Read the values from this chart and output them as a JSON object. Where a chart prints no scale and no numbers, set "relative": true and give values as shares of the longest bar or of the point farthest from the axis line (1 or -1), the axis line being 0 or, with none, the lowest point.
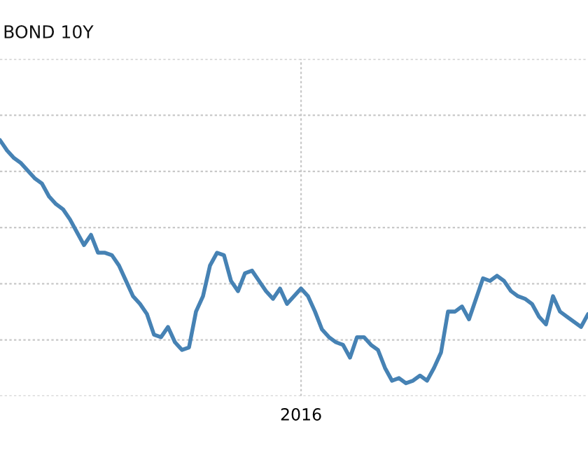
{
  "chart_data": {
    "type": "line",
    "title": "BOND 10Y",
    "relative": true,
    "grid": true,
    "legend": false,
    "categories": [
      null,
      null,
      null,
      null,
      null,
      null,
      null,
      null,
      null,
      null,
      null,
      null,
      null,
      null,
      null,
      null,
      null,
      null,
      null,
      null,
      null,
      null,
      null,
      null,
      null,
      null,
      null,
      null,
      null,
      null,
      null,
      null,
      null,
      null,
      null,
      null,
      null,
      null,
      null,
      null,
      null,
      null,
      null,
      null,
      null,
      null,
      null,
      null,
      null,
      null,
      null,
      null,
      null,
      null,
      null,
      null,
      null,
      null,
      null,
      null,
      null,
      null,
      null,
      null,
      null,
      null,
      null,
      null,
      null,
      null,
      null,
      null,
      null,
      null,
      null,
      null,
      null,
      null,
      null,
      null,
      null,
      null,
      null,
      null,
      null
    ],
    "annotations": [
      "2016"
    ],
    "series": [
      {
        "color": "#4682b4",
        "values": [
          1.0,
          0.96,
          0.93,
          0.91,
          0.88,
          0.85,
          0.83,
          0.78,
          0.75,
          0.73,
          0.69,
          0.64,
          0.59,
          0.63,
          0.56,
          0.56,
          0.55,
          0.51,
          0.45,
          0.39,
          0.36,
          0.32,
          0.24,
          0.23,
          0.27,
          0.21,
          0.18,
          0.19,
          0.33,
          0.39,
          0.51,
          0.56,
          0.55,
          0.45,
          0.41,
          0.48,
          0.49,
          0.45,
          0.41,
          0.38,
          0.42,
          0.36,
          0.39,
          0.42,
          0.39,
          0.33,
          0.26,
          0.23,
          0.21,
          0.2,
          0.15,
          0.23,
          0.23,
          0.2,
          0.18,
          0.11,
          0.06,
          0.07,
          0.05,
          0.06,
          0.08,
          0.06,
          0.11,
          0.17,
          0.33,
          0.33,
          0.35,
          0.3,
          0.38,
          0.46,
          0.45,
          0.47,
          0.45,
          0.41,
          0.39,
          0.38,
          0.36,
          0.31,
          0.28,
          0.39,
          0.33,
          0.31,
          0.29,
          0.27,
          0.32
        ]
      }
    ]
  }
}
